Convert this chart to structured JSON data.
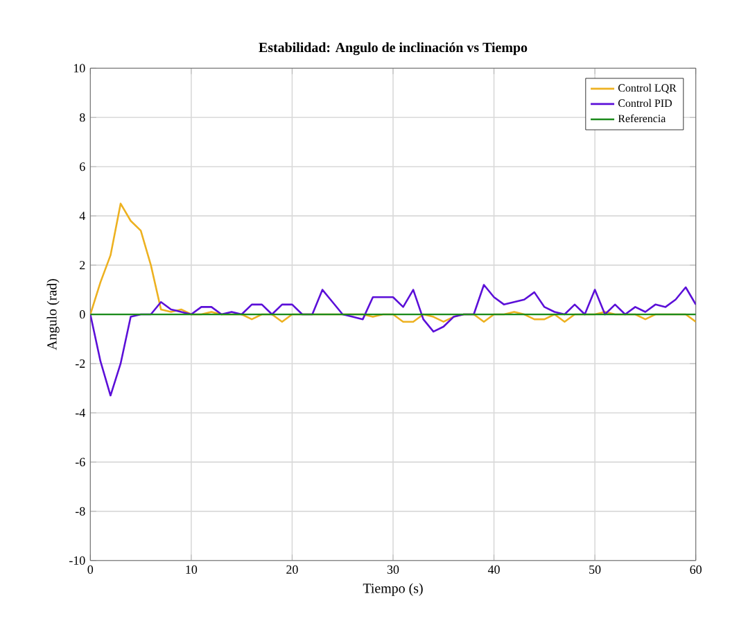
{
  "chart_data": {
    "type": "line",
    "title": "Estabilidad: Angulo de inclinación vs Tiempo",
    "xlabel": "Tiempo (s)",
    "ylabel": "Angulo (rad)",
    "x": [
      0,
      1,
      2,
      3,
      4,
      5,
      6,
      7,
      8,
      9,
      10,
      11,
      12,
      13,
      14,
      15,
      16,
      17,
      18,
      19,
      20,
      21,
      22,
      23,
      24,
      25,
      26,
      27,
      28,
      29,
      30,
      31,
      32,
      33,
      34,
      35,
      36,
      37,
      38,
      39,
      40,
      41,
      42,
      43,
      44,
      45,
      46,
      47,
      48,
      49,
      50,
      51,
      52,
      53,
      54,
      55,
      56,
      57,
      58,
      59,
      60
    ],
    "series": [
      {
        "name": "Control LQR",
        "color": "#edb120",
        "values": [
          0,
          1.3,
          2.4,
          4.5,
          3.8,
          3.4,
          2,
          0.2,
          0.1,
          0.2,
          0,
          0,
          0.1,
          0,
          0,
          0,
          -0.2,
          0,
          0,
          -0.3,
          0,
          0,
          0,
          0,
          0,
          0,
          0,
          0,
          -0.1,
          0,
          0,
          -0.3,
          -0.3,
          0,
          -0.1,
          -0.3,
          -0.1,
          0,
          0,
          -0.3,
          0,
          0,
          0.1,
          0,
          -0.2,
          -0.2,
          0,
          -0.3,
          0,
          0,
          0,
          0.1,
          0,
          0,
          0,
          -0.2,
          0,
          0,
          0,
          0,
          -0.3
        ]
      },
      {
        "name": "Control PID",
        "color": "#5b0fd8",
        "values": [
          0,
          -1.9,
          -3.3,
          -2,
          -0.1,
          0,
          0,
          0.5,
          0.2,
          0.1,
          0,
          0.3,
          0.3,
          0,
          0.1,
          0,
          0.4,
          0.4,
          0,
          0.4,
          0.4,
          0,
          0,
          1,
          0.5,
          0,
          -0.1,
          -0.2,
          0.7,
          0.7,
          0.7,
          0.3,
          1,
          -0.2,
          -0.7,
          -0.5,
          -0.1,
          0,
          0,
          1.2,
          0.7,
          0.4,
          0.5,
          0.6,
          0.9,
          0.3,
          0.1,
          0,
          0.4,
          0,
          1,
          0,
          0.4,
          0,
          0.3,
          0.1,
          0.4,
          0.3,
          0.6,
          1.1,
          0.4
        ]
      },
      {
        "name": "Referencia",
        "color": "#1a8a1a",
        "x": [
          0,
          60
        ],
        "values": [
          0,
          0
        ]
      }
    ],
    "xlim": [
      0,
      60
    ],
    "ylim": [
      -10,
      10
    ],
    "xticks": [
      0,
      10,
      20,
      30,
      40,
      50,
      60
    ],
    "yticks": [
      -10,
      -8,
      -6,
      -4,
      -2,
      0,
      2,
      4,
      6,
      8,
      10
    ],
    "grid": true,
    "legend": "top right",
    "marker": "none",
    "line_style": "solid"
  }
}
